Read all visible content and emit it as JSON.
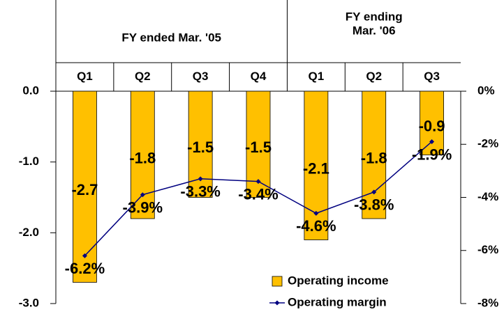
{
  "chart_data": {
    "type": "bar_line",
    "groups": [
      {
        "label": [
          "FY ended Mar. '05"
        ],
        "categories": [
          "Q1",
          "Q2",
          "Q3",
          "Q4"
        ]
      },
      {
        "label": [
          "FY ending",
          "Mar. '06"
        ],
        "categories": [
          "Q1",
          "Q2",
          "Q3"
        ]
      }
    ],
    "series": [
      {
        "name": "Operating income",
        "color": "#FFC000",
        "values": [
          -2.7,
          -1.8,
          -1.5,
          -1.5,
          -2.1,
          -1.8,
          -0.9
        ]
      },
      {
        "name": "Operating margin",
        "color": "#000080",
        "axis": "y2",
        "values": [
          -6.2,
          -3.9,
          -3.3,
          -3.4,
          -4.6,
          -3.8,
          -1.9
        ],
        "value_labels": [
          "-6.2%",
          "-3.9%",
          "-3.3%",
          "-3.4%",
          "-4.6%",
          "-3.8%",
          "-1.9%"
        ]
      }
    ],
    "ylim": [
      -3,
      0
    ],
    "yticks": [
      {
        "value": 0,
        "label": "0.0"
      },
      {
        "value": -1,
        "label": "-1.0"
      },
      {
        "value": -2,
        "label": "-2.0"
      },
      {
        "value": -3,
        "label": "-3.0"
      }
    ],
    "y2lim": [
      -8,
      0
    ],
    "y2ticks": [
      {
        "value": 0,
        "label": "0%"
      },
      {
        "value": -2,
        "label": "-2%"
      },
      {
        "value": -4,
        "label": "-4%"
      },
      {
        "value": -6,
        "label": "-6%"
      },
      {
        "value": -8,
        "label": "-8%"
      }
    ],
    "legend": "lower right"
  }
}
